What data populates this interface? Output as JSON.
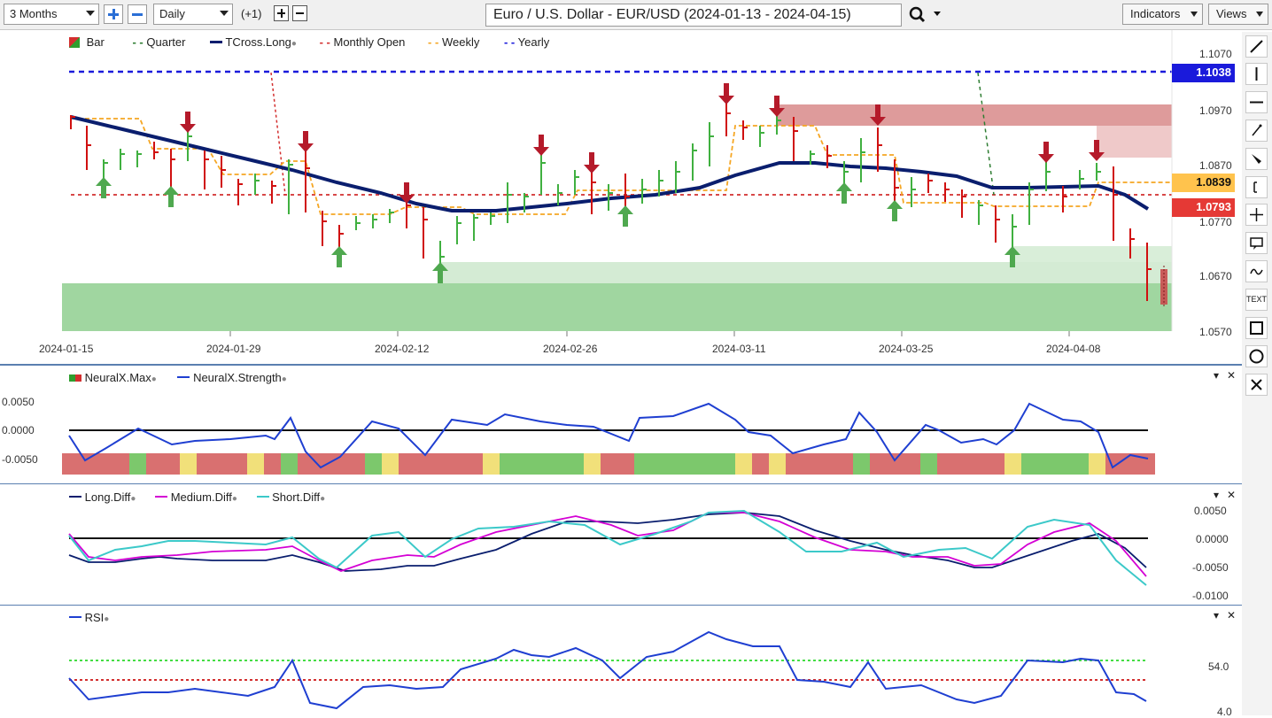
{
  "toolbar": {
    "period": "3 Months",
    "interval": "Daily",
    "offset": "(+1)",
    "title": "Euro / U.S. Dollar - EUR/USD (2024-01-13 - 2024-04-15)",
    "indicators_label": "Indicators",
    "views_label": "Views"
  },
  "price_pane": {
    "legend": [
      {
        "label": "Bar",
        "icon": "bar-icon"
      },
      {
        "label": "Quarter",
        "color": "#2e7d32"
      },
      {
        "label": "TCross.Long",
        "color": "#0a1e6e"
      },
      {
        "label": "Monthly Open",
        "color": "#d32f2f"
      },
      {
        "label": "Weekly",
        "color": "#f5a623"
      },
      {
        "label": "Yearly",
        "color": "#1a1adb"
      }
    ],
    "y_labels": [
      "1.1070",
      "1.0970",
      "1.0870",
      "1.0770",
      "1.0670",
      "1.0570"
    ],
    "x_labels": [
      "2024-01-15",
      "2024-01-29",
      "2024-02-12",
      "2024-02-26",
      "2024-03-11",
      "2024-03-25",
      "2024-04-08"
    ],
    "tags": [
      {
        "value": "1.1038",
        "bg": "#1a1adb",
        "fg": "#ffffff"
      },
      {
        "value": "1.0839",
        "bg": "#ffc34d",
        "fg": "#111111"
      },
      {
        "value": "1.0793",
        "bg": "#e53935",
        "fg": "#ffffff"
      }
    ]
  },
  "neural_pane": {
    "legend": [
      {
        "label": "NeuralX.Max",
        "color": "#d32f2f"
      },
      {
        "label": "NeuralX.Strength",
        "color": "#1f3fd1"
      }
    ],
    "y_labels": [
      "0.0050",
      "0.0000",
      "-0.0050"
    ]
  },
  "diff_pane": {
    "legend": [
      {
        "label": "Long.Diff",
        "color": "#0a1e6e"
      },
      {
        "label": "Medium.Diff",
        "color": "#d400d4"
      },
      {
        "label": "Short.Diff",
        "color": "#3cc9c9"
      }
    ],
    "y_labels": [
      "0.0050",
      "0.0000",
      "-0.0050",
      "-0.0100"
    ]
  },
  "rsi_pane": {
    "legend": [
      {
        "label": "RSI",
        "color": "#1f3fd1"
      }
    ],
    "y_labels": [
      "54.0",
      "4.0"
    ]
  },
  "pane_controls": {
    "collapse": "▾",
    "close": "✕"
  },
  "right_tools": [
    "line-tool-icon",
    "vertical-line-icon",
    "horizontal-line-icon",
    "pen-icon",
    "brush-icon",
    "bracket-icon",
    "crosshair-icon",
    "comment-icon",
    "wave-icon",
    "TEXT",
    "rectangle-icon",
    "circle-icon",
    "delete-icon"
  ]
}
